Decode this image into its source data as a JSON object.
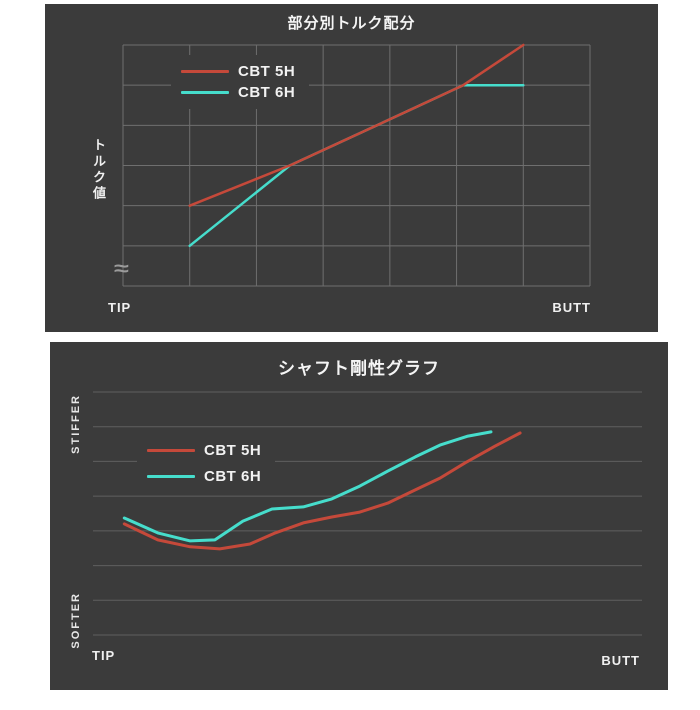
{
  "colors": {
    "page_bg": "#ffffff",
    "panel_bg": "#3b3b3b",
    "grid_top": "#6f6f6f",
    "grid_bottom": "#5f5f5f",
    "text": "#f2f2f2",
    "muted_gray": "#9b9b9b",
    "red": "#c5493a",
    "cyan": "#46ddcc"
  },
  "chart_data": [
    {
      "type": "line",
      "title": "部分別トルク配分",
      "ylabel": "トルク値",
      "xlabel_left": "TIP",
      "xlabel_right": "BUTT",
      "axis_break_symbol": "≈",
      "xlim": [
        0,
        7
      ],
      "ylim": [
        0,
        6
      ],
      "grid": {
        "vertical_lines": 8,
        "horizontal_lines": 7,
        "border": true
      },
      "legend_position": "upper-left-inside",
      "series": [
        {
          "name": "CBT 5H",
          "color": "#c5493a",
          "points": [
            [
              1,
              2
            ],
            [
              2.5,
              3
            ],
            [
              4,
              4.15
            ],
            [
              5.1,
              5
            ],
            [
              6,
              6
            ]
          ]
        },
        {
          "name": "CBT 6H",
          "color": "#46ddcc",
          "points": [
            [
              1,
              1
            ],
            [
              2.5,
              3
            ],
            [
              4,
              4.15
            ],
            [
              5.1,
              5
            ],
            [
              6,
              5
            ]
          ]
        }
      ]
    },
    {
      "type": "line",
      "title": "シャフト剛性グラフ",
      "ylabel_top": "STIFFER",
      "ylabel_bottom": "SOFTER",
      "xlabel_left": "TIP",
      "xlabel_right": "BUTT",
      "xlim": [
        0,
        10
      ],
      "ylim": [
        0,
        7
      ],
      "grid": {
        "vertical_lines": 0,
        "horizontal_lines": 8,
        "border": false
      },
      "legend_position": "upper-left-inside",
      "series": [
        {
          "name": "CBT 5H",
          "color": "#c5493a",
          "points": [
            [
              0.57,
              3.2
            ],
            [
              1.18,
              2.74
            ],
            [
              1.77,
              2.54
            ],
            [
              2.31,
              2.48
            ],
            [
              2.86,
              2.62
            ],
            [
              3.32,
              2.94
            ],
            [
              3.83,
              3.23
            ],
            [
              4.35,
              3.4
            ],
            [
              4.86,
              3.54
            ],
            [
              5.37,
              3.8
            ],
            [
              5.87,
              4.18
            ],
            [
              6.32,
              4.52
            ],
            [
              6.78,
              4.96
            ],
            [
              7.32,
              5.44
            ],
            [
              7.78,
              5.82
            ]
          ]
        },
        {
          "name": "CBT 6H",
          "color": "#46ddcc",
          "points": [
            [
              0.57,
              3.37
            ],
            [
              1.18,
              2.94
            ],
            [
              1.77,
              2.71
            ],
            [
              2.22,
              2.74
            ],
            [
              2.73,
              3.28
            ],
            [
              3.26,
              3.63
            ],
            [
              3.83,
              3.69
            ],
            [
              4.35,
              3.92
            ],
            [
              4.86,
              4.29
            ],
            [
              5.37,
              4.72
            ],
            [
              5.87,
              5.13
            ],
            [
              6.32,
              5.47
            ],
            [
              6.83,
              5.73
            ],
            [
              7.25,
              5.85
            ]
          ]
        }
      ]
    }
  ]
}
